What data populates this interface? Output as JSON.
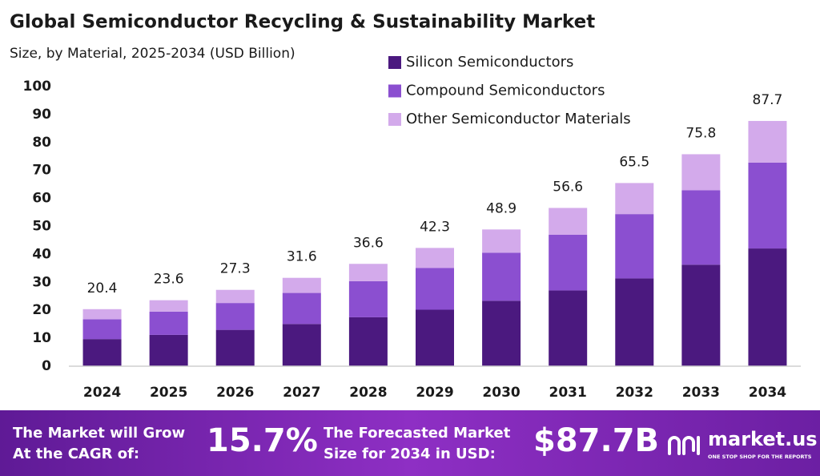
{
  "chart_data": {
    "type": "stacked_bar",
    "title": "Global Semiconductor Recycling & Sustainability Market",
    "subtitle": "Size, by Material, 2025-2034 (USD Billion)",
    "categories": [
      "2024",
      "2025",
      "2026",
      "2027",
      "2028",
      "2029",
      "2030",
      "2031",
      "2032",
      "2033",
      "2034"
    ],
    "series": [
      {
        "name": "Silicon Semiconductors",
        "color": "#4b197f",
        "values": [
          9.7,
          11.2,
          13.0,
          15.1,
          17.5,
          20.2,
          23.4,
          27.1,
          31.4,
          36.3,
          42.1
        ]
      },
      {
        "name": "Compound Semiconductors",
        "color": "#8b4fd0",
        "values": [
          7.1,
          8.3,
          9.6,
          11.1,
          12.9,
          14.9,
          17.2,
          19.9,
          23.0,
          26.6,
          30.7
        ]
      },
      {
        "name": "Other Semiconductor Materials",
        "color": "#d3aaeb",
        "values": [
          3.6,
          4.1,
          4.7,
          5.4,
          6.2,
          7.2,
          8.3,
          9.6,
          11.1,
          12.9,
          14.9
        ]
      }
    ],
    "totals": [
      20.4,
      23.6,
      27.3,
      31.6,
      36.6,
      42.3,
      48.9,
      56.6,
      65.5,
      75.8,
      87.7
    ],
    "ylim": [
      0,
      100
    ],
    "yticks": [
      0,
      10,
      20,
      30,
      40,
      50,
      60,
      70,
      80,
      90,
      100
    ],
    "grid": false,
    "legend": "top-right"
  },
  "footer": {
    "cagr_label": [
      "The Market will Grow",
      "At the CAGR of:"
    ],
    "cagr": "15.7%",
    "size_label": [
      "The Forecasted Market",
      "Size for 2034 in USD:"
    ],
    "size": "$87.7B",
    "brand": "market.us",
    "tagline": "ONE STOP SHOP FOR THE REPORTS"
  }
}
